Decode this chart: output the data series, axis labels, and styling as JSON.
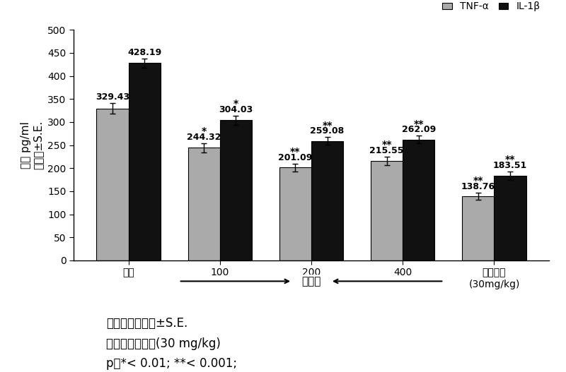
{
  "categories": [
    "对照",
    "100",
    "200",
    "400",
    "略利普兰\n(30mg/kg)"
  ],
  "tnf_values": [
    329.43,
    244.32,
    201.09,
    215.55,
    138.76
  ],
  "il1_values": [
    428.19,
    304.03,
    259.08,
    262.09,
    183.51
  ],
  "tnf_errors": [
    12,
    10,
    8,
    9,
    8
  ],
  "il1_errors": [
    10,
    10,
    8,
    8,
    9
  ],
  "tnf_color": "#aaaaaa",
  "il1_color": "#111111",
  "tnf_label": "TNF-α",
  "il1_label": "IL-1β",
  "ylabel_line1": "浓度 pg/ml",
  "ylabel_line2": "平均値±S.E.",
  "ylim": [
    0,
    500
  ],
  "yticks": [
    0,
    50,
    100,
    150,
    200,
    250,
    300,
    350,
    400,
    450,
    500
  ],
  "tnf_sig": [
    "",
    "*",
    "**",
    "**",
    "**"
  ],
  "il1_sig": [
    "",
    "*",
    "**",
    "**",
    "**"
  ],
  "bar_width": 0.35,
  "note1": "値表示为平均値±S.E.",
  "note2": "略利普兰：标准(30 mg/kg)",
  "note3": "p値*< 0.01; **< 0.001;",
  "arrow_label": "组合物",
  "background_color": "#ffffff",
  "fontsize_ticks": 10,
  "fontsize_label": 11,
  "fontsize_values": 9,
  "fontsize_sig": 10,
  "fontsize_notes": 12,
  "fontsize_legend": 10
}
